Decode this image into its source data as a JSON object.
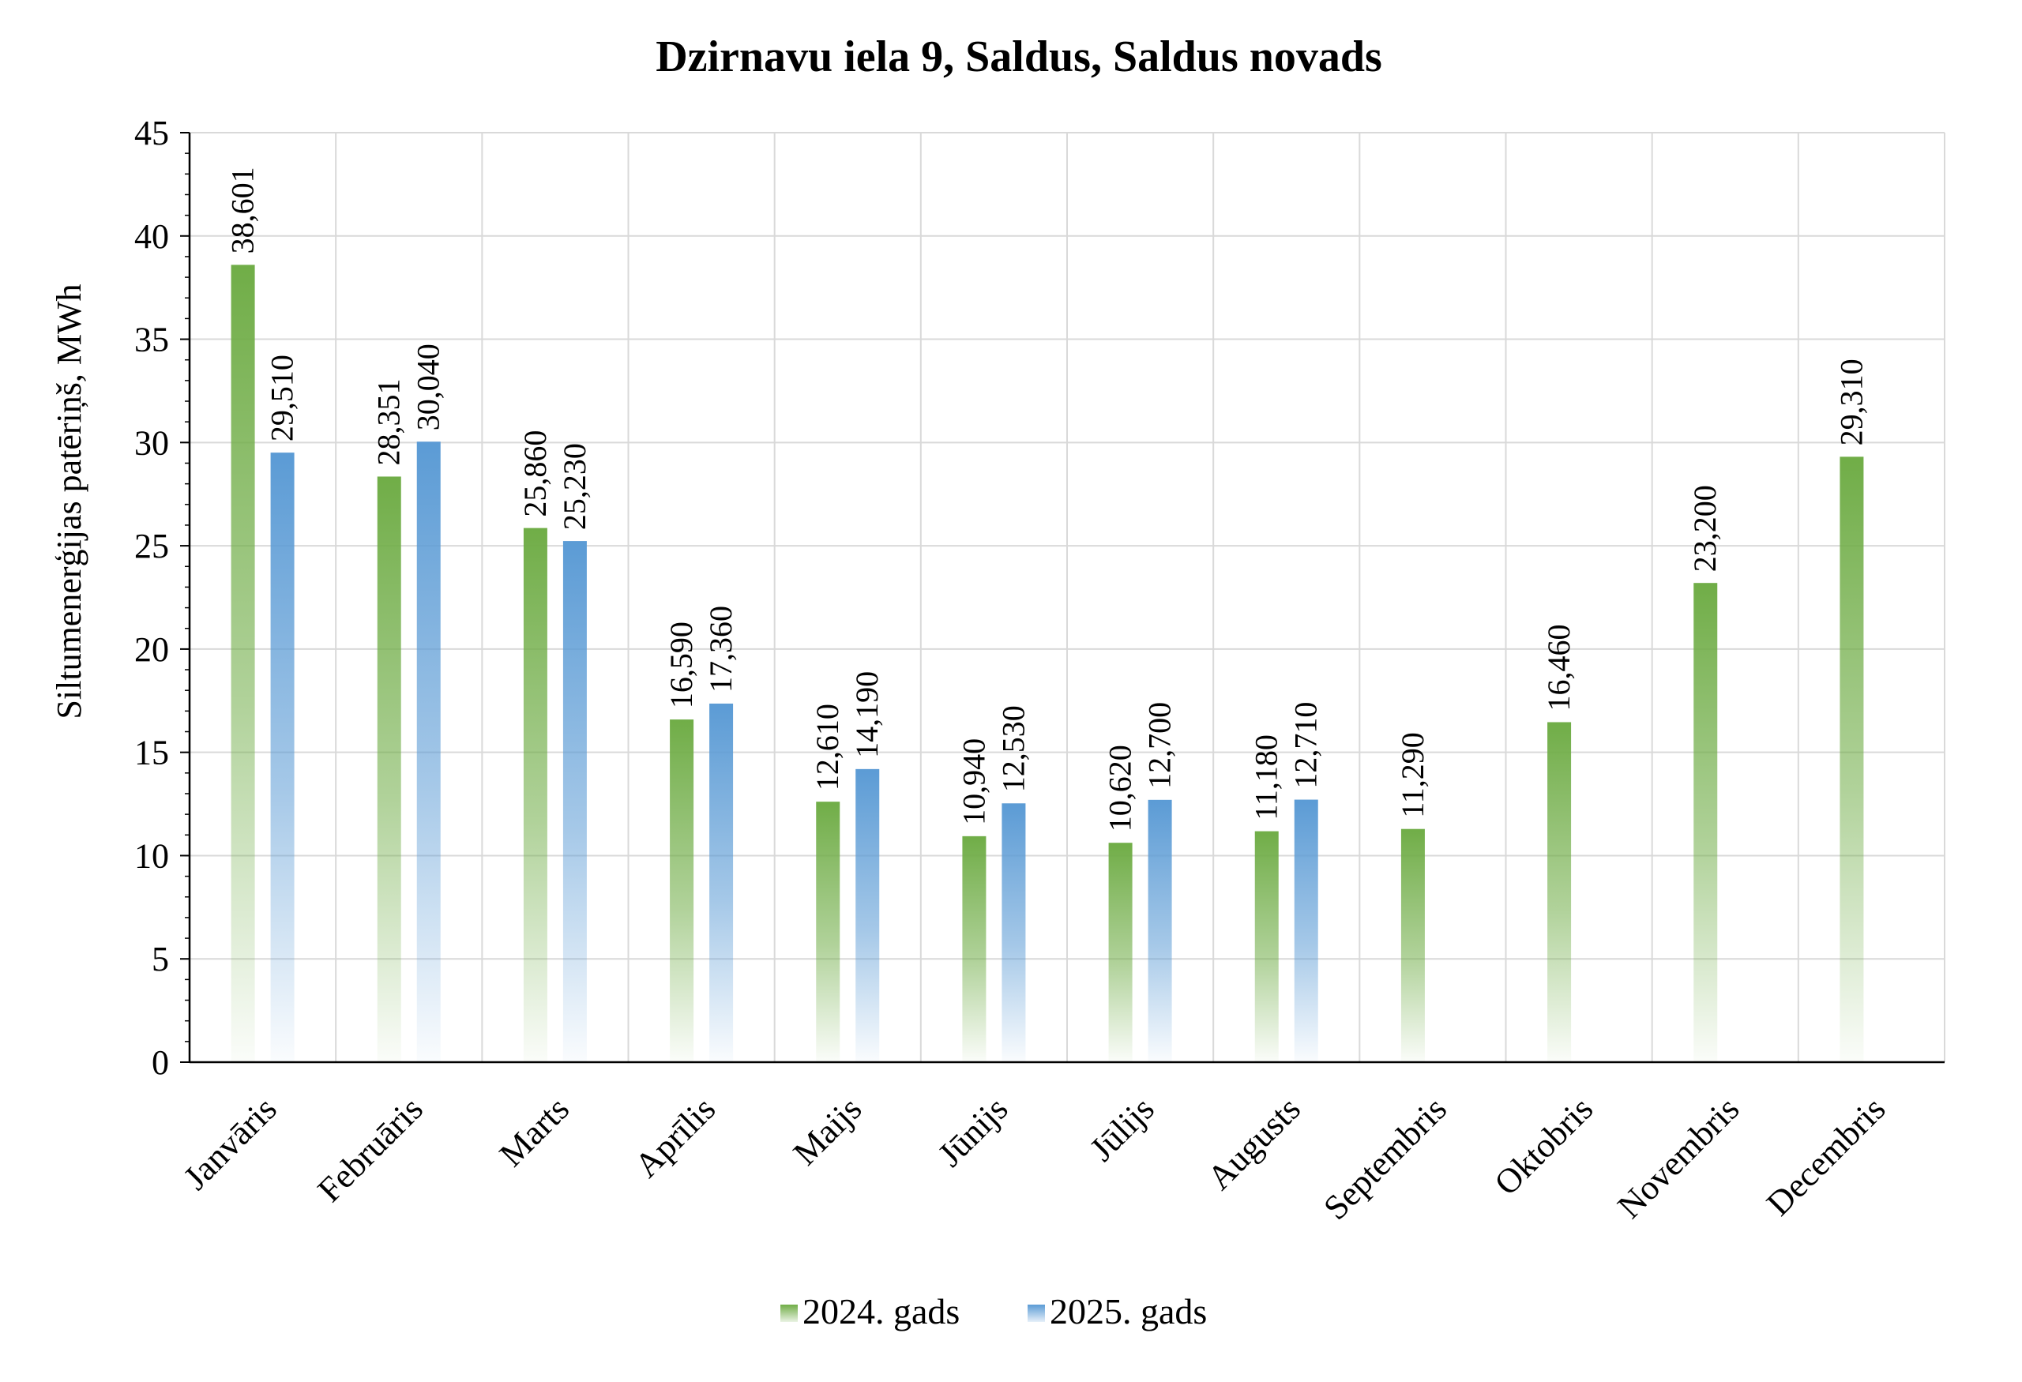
{
  "chart_data": {
    "type": "bar",
    "title": "Dzirnavu iela 9, Saldus, Saldus novads",
    "ylabel": "Siltumenerģijas patēriņš, MWh",
    "xlabel": "",
    "ylim": [
      0,
      45
    ],
    "ytick_step": 5,
    "ytick_labels": [
      "0",
      "5",
      "10",
      "15",
      "20",
      "25",
      "30",
      "35",
      "40",
      "45"
    ],
    "grid": true,
    "legend_position": "bottom",
    "categories": [
      "Janvāris",
      "Februāris",
      "Marts",
      "Aprīlis",
      "Maijs",
      "Jūnijs",
      "Jūlijs",
      "Augusts",
      "Septembris",
      "Oktobris",
      "Novembris",
      "Decembris"
    ],
    "series": [
      {
        "name": "2024. gads",
        "color": "#70AD47",
        "values": [
          38.601,
          28.351,
          25.86,
          16.59,
          12.61,
          10.94,
          10.62,
          11.18,
          11.29,
          16.46,
          23.2,
          29.31
        ],
        "labels": [
          "38,601",
          "28,351",
          "25,860",
          "16,590",
          "12,610",
          "10,940",
          "10,620",
          "11,180",
          "11,290",
          "16,460",
          "23,200",
          "29,310"
        ]
      },
      {
        "name": "2025. gads",
        "color": "#5B9BD5",
        "values": [
          29.51,
          30.04,
          25.23,
          17.36,
          14.19,
          12.53,
          12.7,
          12.71,
          null,
          null,
          null,
          null
        ],
        "labels": [
          "29,510",
          "30,040",
          "25,230",
          "17,360",
          "14,190",
          "12,530",
          "12,700",
          "12,710",
          "",
          "",
          "",
          ""
        ]
      }
    ]
  }
}
